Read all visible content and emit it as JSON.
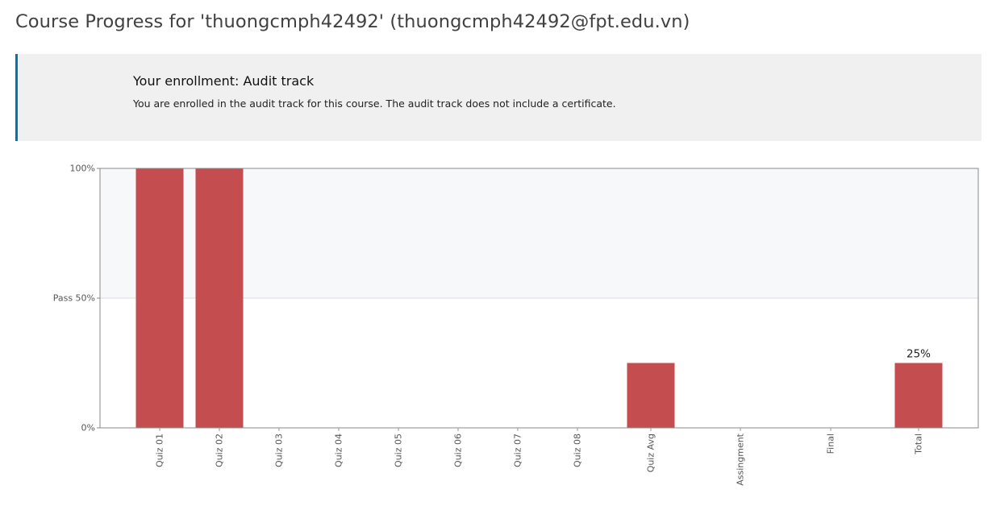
{
  "page": {
    "title": "Course Progress for 'thuongcmph42492' (thuongcmph42492@fpt.edu.vn)"
  },
  "enrollment": {
    "title": "Your enrollment: Audit track",
    "message": "You are enrolled in the audit track for this course. The audit track does not include a certificate."
  },
  "colors": {
    "accent": "#0075b4",
    "bar": "#c44d4f",
    "pass_region": "#f7f8fa"
  },
  "chart_data": {
    "type": "bar",
    "categories": [
      "Quiz 01",
      "Quiz 02",
      "Quiz 03",
      "Quiz 04",
      "Quiz 05",
      "Quiz 06",
      "Quiz 07",
      "Quiz 08",
      "Quiz Avg",
      "Assingment",
      "Final",
      "Total"
    ],
    "values": [
      100,
      100,
      0,
      0,
      0,
      0,
      0,
      0,
      25,
      0,
      0,
      25
    ],
    "ylim": [
      0,
      100
    ],
    "y_ticks": [
      {
        "value": 0,
        "label": "0%"
      },
      {
        "value": 50,
        "label": "Pass 50%"
      },
      {
        "value": 100,
        "label": "100%"
      }
    ],
    "pass_threshold": 50,
    "annotations": [
      {
        "category": "Total",
        "value": 25,
        "text": "25%"
      }
    ],
    "xlabel": "",
    "ylabel": "",
    "grid": false
  }
}
